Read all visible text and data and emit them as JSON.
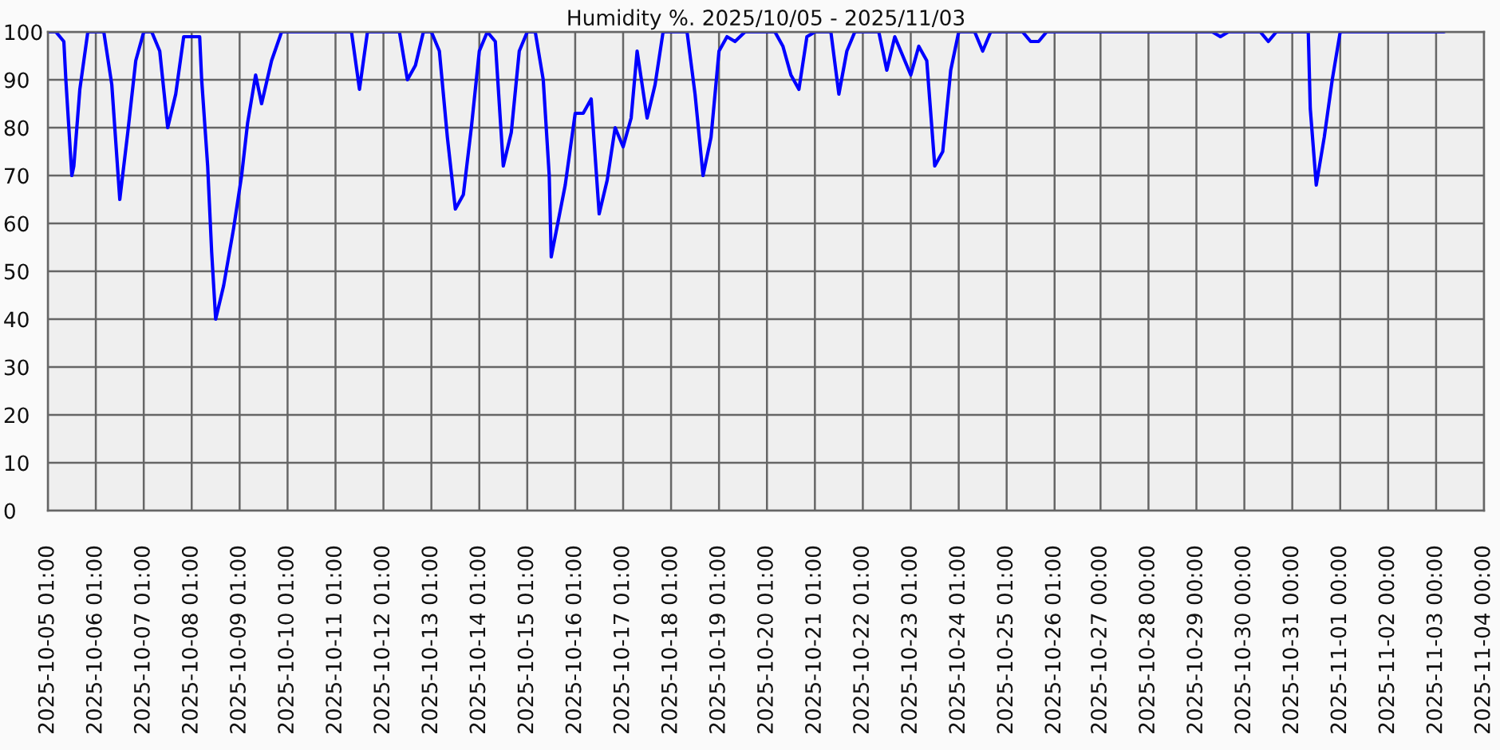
{
  "chart_data": {
    "type": "line",
    "title": "Humidity %. 2025/10/05 - 2025/11/03",
    "x": [
      "2025-10-05T01:00",
      "2025-10-05T05:00",
      "2025-10-05T09:00",
      "2025-10-05T10:00",
      "2025-10-05T13:00",
      "2025-10-05T14:00",
      "2025-10-05T17:00",
      "2025-10-05T21:00",
      "2025-10-06T05:00",
      "2025-10-06T09:00",
      "2025-10-06T13:00",
      "2025-10-06T17:00",
      "2025-10-06T21:00",
      "2025-10-07T01:00",
      "2025-10-07T05:00",
      "2025-10-07T09:00",
      "2025-10-07T13:00",
      "2025-10-07T17:00",
      "2025-10-07T21:00",
      "2025-10-08T05:00",
      "2025-10-08T06:00",
      "2025-10-08T09:00",
      "2025-10-08T11:00",
      "2025-10-08T13:00",
      "2025-10-08T17:00",
      "2025-10-08T22:00",
      "2025-10-09T02:00",
      "2025-10-09T05:00",
      "2025-10-09T09:00",
      "2025-10-09T12:00",
      "2025-10-09T17:00",
      "2025-10-09T22:00",
      "2025-10-11T09:00",
      "2025-10-11T13:00",
      "2025-10-11T17:00",
      "2025-10-12T09:00",
      "2025-10-12T13:00",
      "2025-10-12T17:00",
      "2025-10-12T21:00",
      "2025-10-13T01:00",
      "2025-10-13T05:00",
      "2025-10-13T09:00",
      "2025-10-13T13:00",
      "2025-10-13T17:00",
      "2025-10-13T21:00",
      "2025-10-14T01:00",
      "2025-10-14T05:00",
      "2025-10-14T09:00",
      "2025-10-14T13:00",
      "2025-10-14T17:00",
      "2025-10-14T21:00",
      "2025-10-15T01:00",
      "2025-10-15T05:00",
      "2025-10-15T09:00",
      "2025-10-15T12:00",
      "2025-10-15T13:00",
      "2025-10-15T20:00",
      "2025-10-16T01:00",
      "2025-10-16T05:00",
      "2025-10-16T09:00",
      "2025-10-16T13:00",
      "2025-10-16T17:00",
      "2025-10-16T21:00",
      "2025-10-17T01:00",
      "2025-10-17T05:00",
      "2025-10-17T08:00",
      "2025-10-17T13:00",
      "2025-10-17T17:00",
      "2025-10-17T21:00",
      "2025-10-18T09:00",
      "2025-10-18T13:00",
      "2025-10-18T17:00",
      "2025-10-18T21:00",
      "2025-10-19T01:00",
      "2025-10-19T05:00",
      "2025-10-19T09:00",
      "2025-10-19T14:00",
      "2025-10-20T05:00",
      "2025-10-20T09:00",
      "2025-10-20T13:00",
      "2025-10-20T17:00",
      "2025-10-20T21:00",
      "2025-10-21T01:00",
      "2025-10-21T09:00",
      "2025-10-21T13:00",
      "2025-10-21T17:00",
      "2025-10-21T21:00",
      "2025-10-22T09:00",
      "2025-10-22T13:00",
      "2025-10-22T17:00",
      "2025-10-23T01:00",
      "2025-10-23T05:00",
      "2025-10-23T09:00",
      "2025-10-23T13:00",
      "2025-10-23T17:00",
      "2025-10-23T21:00",
      "2025-10-24T01:00",
      "2025-10-24T09:00",
      "2025-10-24T13:00",
      "2025-10-24T17:00",
      "2025-10-25T09:00",
      "2025-10-25T13:00",
      "2025-10-25T17:00",
      "2025-10-25T21:00",
      "2025-10-29T08:00",
      "2025-10-29T12:00",
      "2025-10-29T16:00",
      "2025-10-30T08:00",
      "2025-10-30T12:00",
      "2025-10-30T16:00",
      "2025-10-31T08:00",
      "2025-10-31T09:00",
      "2025-10-31T12:00",
      "2025-10-31T16:00",
      "2025-10-31T20:00",
      "2025-11-01T00:00",
      "2025-11-03T04:00"
    ],
    "series": [
      {
        "color": "#0000ff",
        "values": [
          100,
          100,
          98,
          90,
          70,
          72,
          88,
          100,
          100,
          89,
          65,
          79,
          94,
          100,
          100,
          96,
          80,
          87,
          99,
          99,
          90,
          72,
          54,
          40,
          47,
          59,
          70,
          81,
          91,
          85,
          94,
          100,
          100,
          88,
          100,
          100,
          90,
          93,
          100,
          100,
          96,
          78,
          63,
          66,
          80,
          96,
          100,
          98,
          72,
          79,
          96,
          100,
          100,
          90,
          70,
          53,
          68,
          83,
          83,
          86,
          62,
          69,
          80,
          76,
          82,
          96,
          82,
          89,
          100,
          100,
          87,
          70,
          78,
          96,
          99,
          98,
          100,
          100,
          97,
          91,
          88,
          99,
          100,
          100,
          87,
          96,
          100,
          100,
          92,
          99,
          91,
          97,
          94,
          72,
          75,
          92,
          100,
          100,
          96,
          100,
          100,
          98,
          98,
          100,
          100,
          99,
          100,
          100,
          98,
          100,
          100,
          84,
          68,
          78,
          90,
          100,
          100
        ]
      }
    ],
    "xlim": [
      "2025-10-05T01:00",
      "2025-11-04T00:00"
    ],
    "xticks": [
      {
        "value": "2025-10-05T01:00",
        "label": "2025-10-05 01:00"
      },
      {
        "value": "2025-10-06T01:00",
        "label": "2025-10-06 01:00"
      },
      {
        "value": "2025-10-07T01:00",
        "label": "2025-10-07 01:00"
      },
      {
        "value": "2025-10-08T01:00",
        "label": "2025-10-08 01:00"
      },
      {
        "value": "2025-10-09T01:00",
        "label": "2025-10-09 01:00"
      },
      {
        "value": "2025-10-10T01:00",
        "label": "2025-10-10 01:00"
      },
      {
        "value": "2025-10-11T01:00",
        "label": "2025-10-11 01:00"
      },
      {
        "value": "2025-10-12T01:00",
        "label": "2025-10-12 01:00"
      },
      {
        "value": "2025-10-13T01:00",
        "label": "2025-10-13 01:00"
      },
      {
        "value": "2025-10-14T01:00",
        "label": "2025-10-14 01:00"
      },
      {
        "value": "2025-10-15T01:00",
        "label": "2025-10-15 01:00"
      },
      {
        "value": "2025-10-16T01:00",
        "label": "2025-10-16 01:00"
      },
      {
        "value": "2025-10-17T01:00",
        "label": "2025-10-17 01:00"
      },
      {
        "value": "2025-10-18T01:00",
        "label": "2025-10-18 01:00"
      },
      {
        "value": "2025-10-19T01:00",
        "label": "2025-10-19 01:00"
      },
      {
        "value": "2025-10-20T01:00",
        "label": "2025-10-20 01:00"
      },
      {
        "value": "2025-10-21T01:00",
        "label": "2025-10-21 01:00"
      },
      {
        "value": "2025-10-22T01:00",
        "label": "2025-10-22 01:00"
      },
      {
        "value": "2025-10-23T01:00",
        "label": "2025-10-23 01:00"
      },
      {
        "value": "2025-10-24T01:00",
        "label": "2025-10-24 01:00"
      },
      {
        "value": "2025-10-25T01:00",
        "label": "2025-10-25 01:00"
      },
      {
        "value": "2025-10-26T01:00",
        "label": "2025-10-26 01:00"
      },
      {
        "value": "2025-10-27T00:00",
        "label": "2025-10-27 00:00"
      },
      {
        "value": "2025-10-28T00:00",
        "label": "2025-10-28 00:00"
      },
      {
        "value": "2025-10-29T00:00",
        "label": "2025-10-29 00:00"
      },
      {
        "value": "2025-10-30T00:00",
        "label": "2025-10-30 00:00"
      },
      {
        "value": "2025-10-31T00:00",
        "label": "2025-10-31 00:00"
      },
      {
        "value": "2025-11-01T00:00",
        "label": "2025-11-01 00:00"
      },
      {
        "value": "2025-11-02T00:00",
        "label": "2025-11-02 00:00"
      },
      {
        "value": "2025-11-03T00:00",
        "label": "2025-11-03 00:00"
      },
      {
        "value": "2025-11-04T00:00",
        "label": "2025-11-04 00:00"
      }
    ],
    "ylim": [
      0,
      100
    ],
    "yticks": [
      0,
      10,
      20,
      30,
      40,
      50,
      60,
      70,
      80,
      90,
      100
    ],
    "grid": true
  }
}
